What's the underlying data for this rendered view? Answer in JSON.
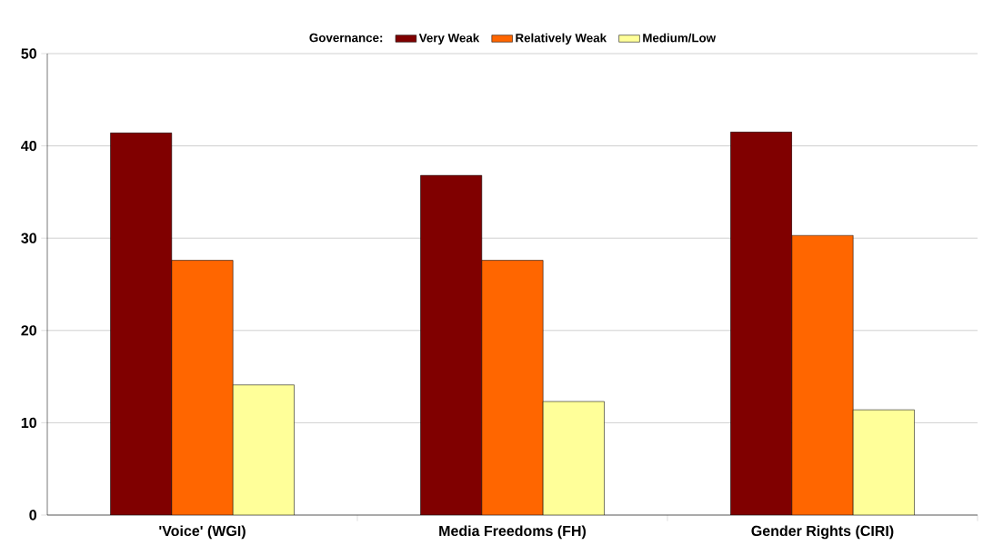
{
  "chart_data": {
    "type": "bar",
    "legend_title": "Governance:",
    "legend": "top",
    "categories": [
      "'Voice' (WGI)",
      "Media Freedoms (FH)",
      "Gender Rights (CIRI)"
    ],
    "series": [
      {
        "name": "Very Weak",
        "color": "#800000",
        "values": [
          41.4,
          36.8,
          41.5
        ]
      },
      {
        "name": "Relatively Weak",
        "color": "#ff6600",
        "values": [
          27.6,
          27.6,
          30.3
        ]
      },
      {
        "name": "Medium/Low",
        "color": "#ffff99",
        "values": [
          14.1,
          12.3,
          11.4
        ]
      }
    ],
    "ylim": [
      0,
      50
    ],
    "yticks": [
      0,
      10,
      20,
      30,
      40,
      50
    ],
    "grid": "y"
  }
}
